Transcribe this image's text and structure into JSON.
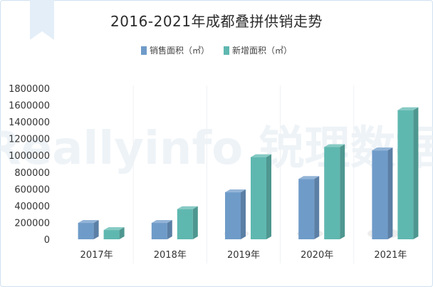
{
  "title": "2016-2021年成都叠拼供销走势",
  "colors": {
    "sales": "#6f9bc9",
    "new_supply": "#5fb8b0",
    "watermark": "#e8eef4"
  },
  "watermark": "Reallyinfo 锐理数据",
  "chart_data": {
    "type": "bar",
    "title": "2016-2021年成都叠拼供销走势",
    "categories": [
      "2017年",
      "2018年",
      "2019年",
      "2020年",
      "2021年"
    ],
    "series": [
      {
        "name": "销售面积（㎡）",
        "values": [
          195000,
          195000,
          560000,
          720000,
          1060000
        ]
      },
      {
        "name": "新增面积（㎡）",
        "values": [
          110000,
          360000,
          980000,
          1100000,
          1540000
        ]
      }
    ],
    "ylim": [
      0,
      1800000
    ],
    "yticks": [
      "1800000",
      "1600000",
      "1400000",
      "1200000",
      "1000000",
      "800000",
      "600000",
      "400000",
      "200000",
      "0"
    ],
    "legend_position": "top-center",
    "grid": "vertical separators"
  }
}
